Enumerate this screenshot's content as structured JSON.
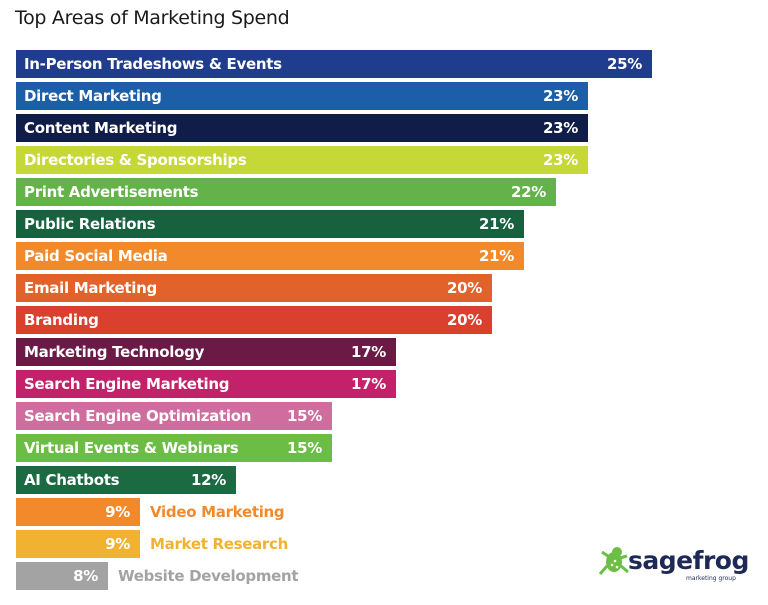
{
  "chart_data": {
    "type": "bar",
    "orientation": "horizontal",
    "title": "Top Areas of Marketing Spend",
    "unit": "%",
    "categories": [
      "In-Person Tradeshows & Events",
      "Direct Marketing",
      "Content Marketing",
      "Directories & Sponsorships",
      "Print Advertisements",
      "Public Relations",
      "Paid Social Media",
      "Email Marketing",
      "Branding",
      "Marketing Technology",
      "Search Engine Marketing",
      "Search Engine Optimization",
      "Virtual Events & Webinars",
      "AI Chatbots",
      "Video Marketing",
      "Market Research",
      "Website Development"
    ],
    "values": [
      25,
      23,
      23,
      23,
      22,
      21,
      21,
      20,
      20,
      17,
      17,
      15,
      15,
      12,
      9,
      9,
      8
    ],
    "value_labels": [
      "25%",
      "23%",
      "23%",
      "23%",
      "22%",
      "21%",
      "21%",
      "20%",
      "20%",
      "17%",
      "17%",
      "15%",
      "15%",
      "12%",
      "9%",
      "9%",
      "8%"
    ],
    "colors": [
      "#1f3d8c",
      "#1d5ea8",
      "#0f1d48",
      "#c6d838",
      "#63b24a",
      "#17613f",
      "#f28a2b",
      "#e2622b",
      "#d9402e",
      "#6a1a45",
      "#c3226a",
      "#cf6e9e",
      "#6bbd45",
      "#1c6a42",
      "#f28a2b",
      "#f1b232",
      "#a3a3a3"
    ],
    "label_outside_below": 10,
    "grid": false,
    "legend": "none"
  },
  "logo": {
    "text": "sagefrog",
    "subtext": "marketing group",
    "icon": "frog-icon",
    "color": "#6cbf45"
  }
}
